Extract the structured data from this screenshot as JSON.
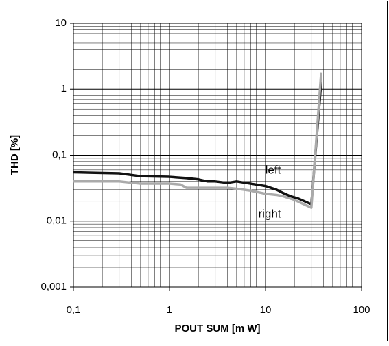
{
  "chart_data": {
    "type": "line",
    "x_label": "POUT SUM [m W]",
    "y_label": "THD [%]",
    "xscale": "log",
    "yscale": "log",
    "grid": true,
    "minor_grid": true,
    "xlim": [
      0.1,
      100
    ],
    "ylim": [
      0.001,
      10
    ],
    "xticks": [
      {
        "value": 0.1,
        "label": "0,1"
      },
      1,
      10,
      100
    ],
    "yticks": [
      {
        "value": 0.001,
        "label": "0,001"
      },
      {
        "value": 0.01,
        "label": "0,01"
      },
      {
        "value": 0.1,
        "label": "0,1"
      },
      1,
      10
    ],
    "series": [
      {
        "name": "left",
        "color": "#111111",
        "x": [
          0.1,
          0.3,
          0.5,
          1,
          1.5,
          2,
          2.5,
          3,
          4,
          5,
          7,
          10,
          13,
          15,
          18,
          22,
          30,
          38
        ],
        "values": [
          0.055,
          0.053,
          0.048,
          0.047,
          0.045,
          0.043,
          0.04,
          0.04,
          0.038,
          0.04,
          0.037,
          0.034,
          0.03,
          0.027,
          0.024,
          0.022,
          0.018,
          1.3
        ]
      },
      {
        "name": "right",
        "color": "#aaaaaa",
        "x": [
          0.1,
          0.3,
          0.5,
          1,
          1.3,
          1.5,
          2,
          3,
          4,
          5,
          7,
          10,
          13,
          15,
          20,
          30,
          38
        ],
        "values": [
          0.04,
          0.04,
          0.037,
          0.037,
          0.036,
          0.032,
          0.032,
          0.032,
          0.032,
          0.031,
          0.029,
          0.026,
          0.025,
          0.024,
          0.021,
          0.016,
          1.8
        ]
      }
    ]
  }
}
